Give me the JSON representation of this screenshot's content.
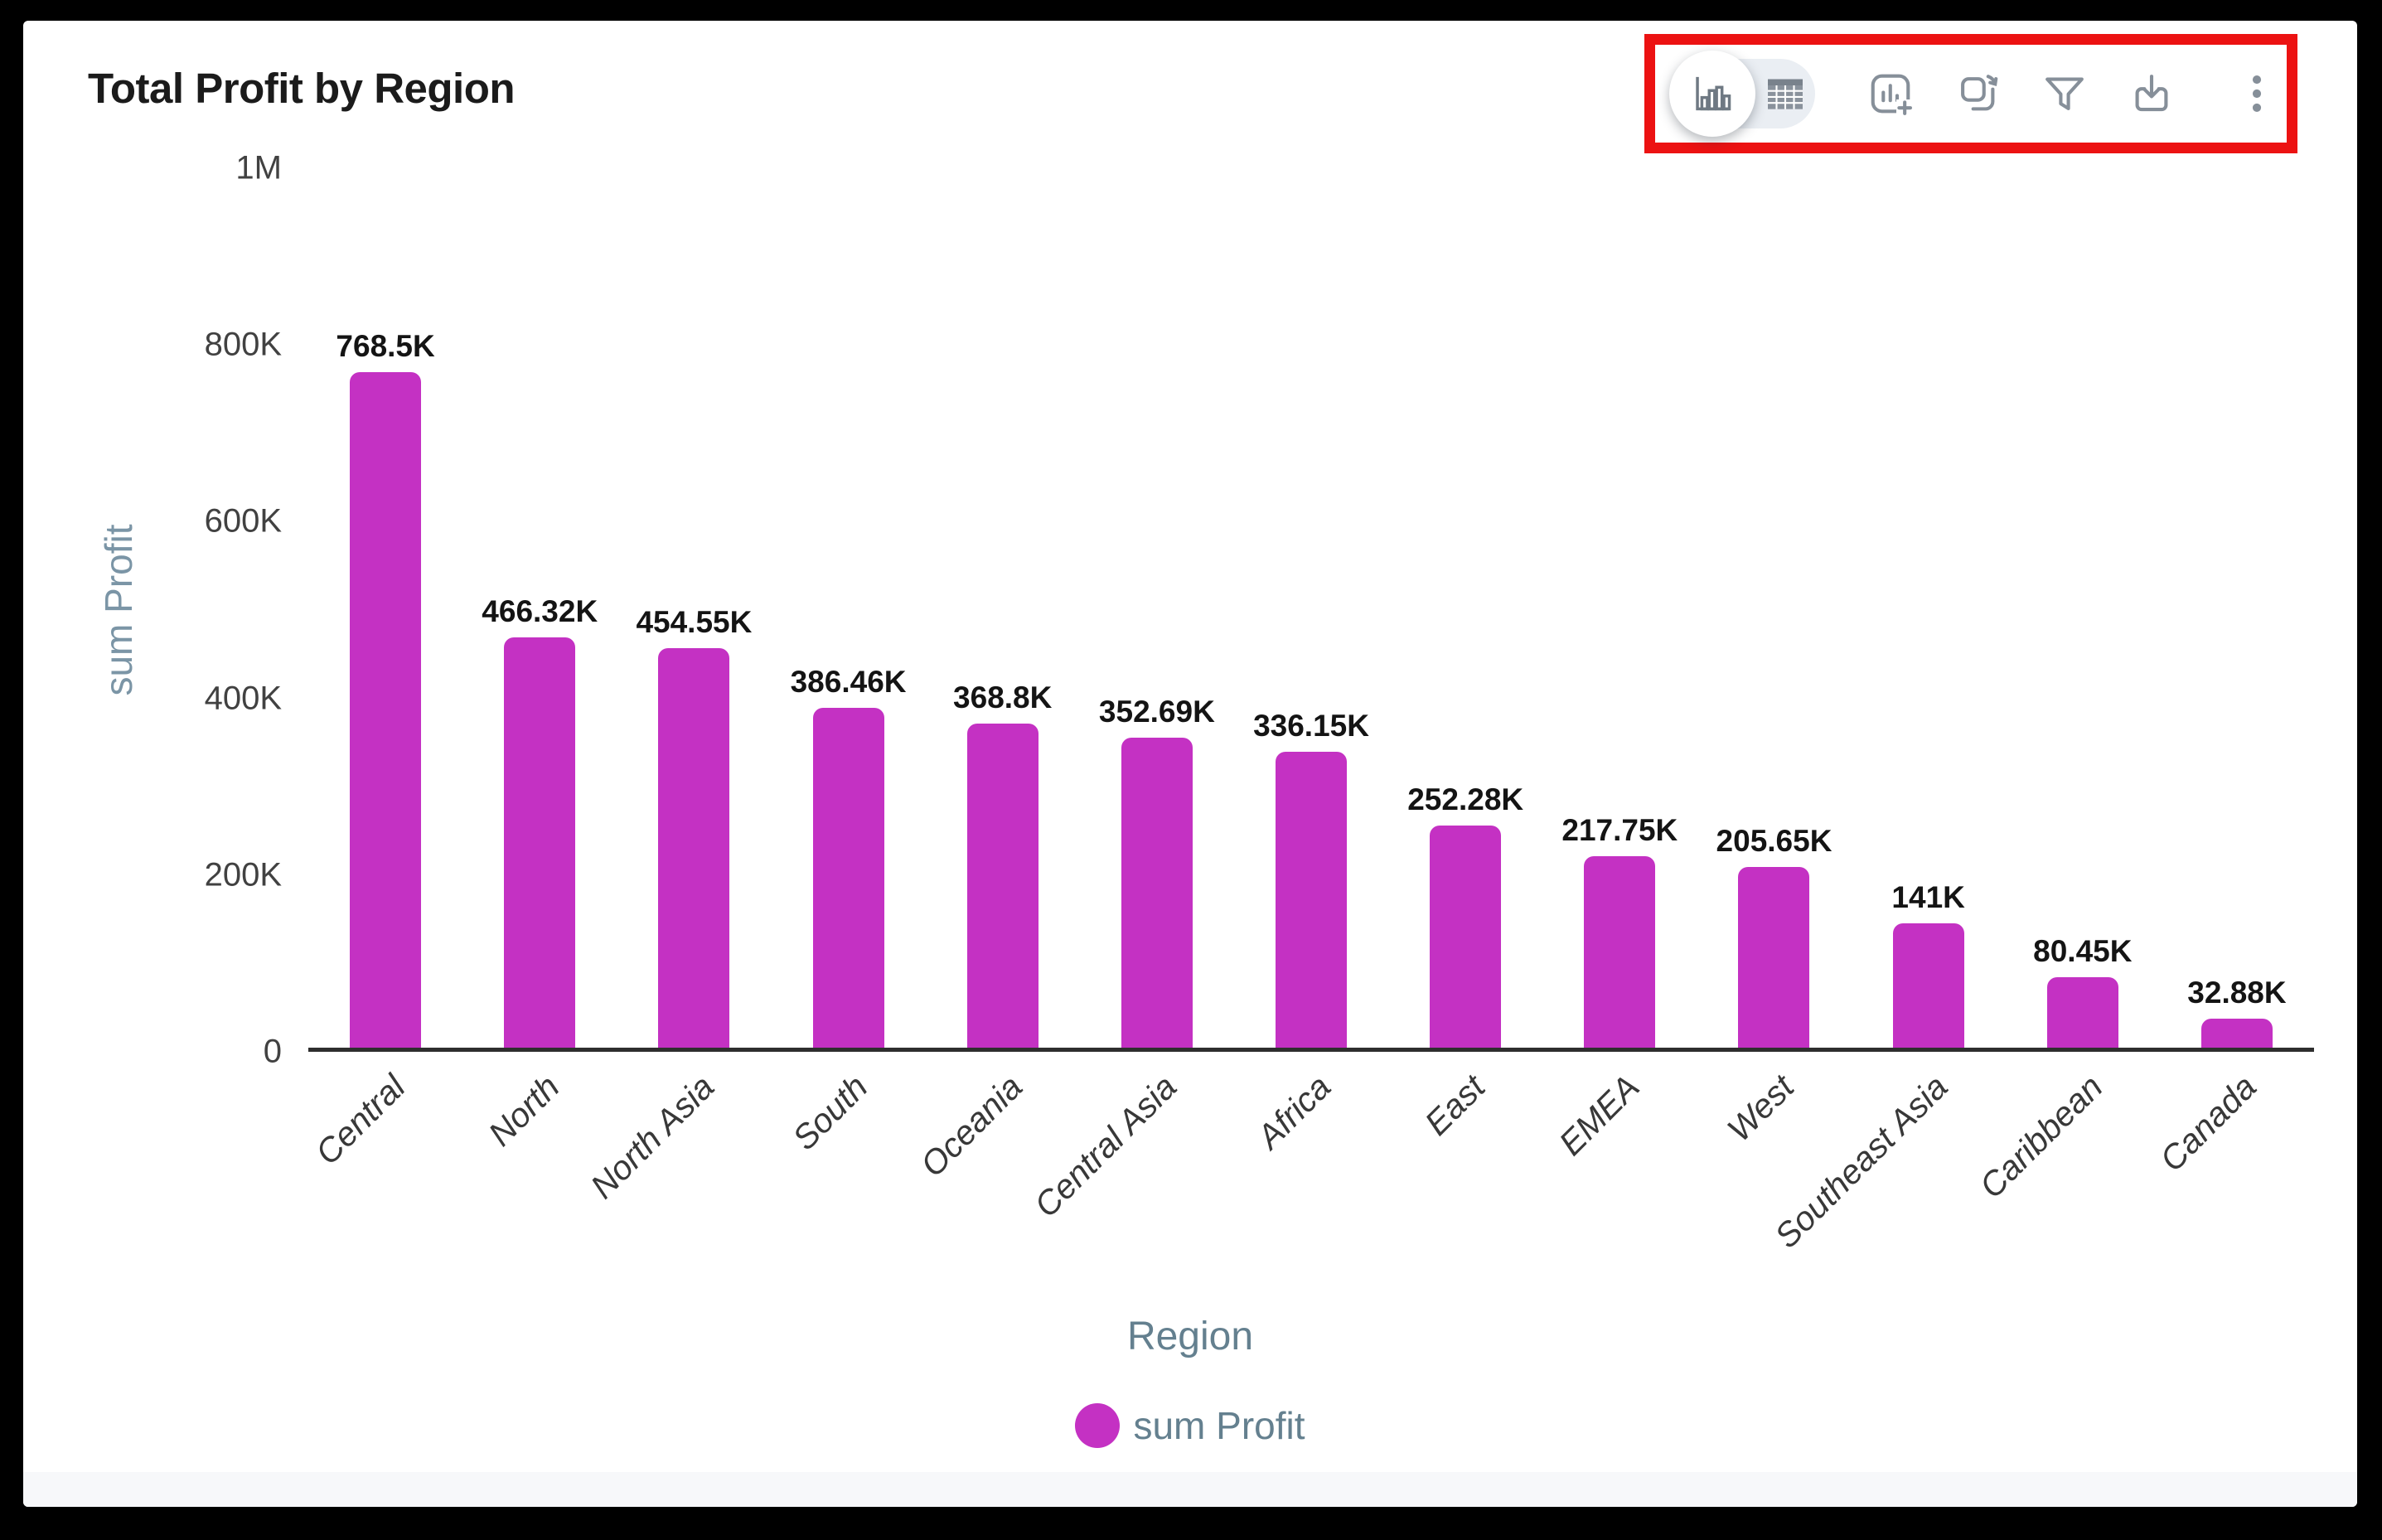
{
  "header": {
    "title": "Total Profit by Region"
  },
  "toolbar": {
    "highlight_color": "#ec1212",
    "view_toggle": {
      "selected": "chart-view",
      "options": [
        "chart-view",
        "table-view"
      ]
    },
    "icons": [
      "add-chart",
      "duplicate",
      "filter",
      "download",
      "more-options"
    ]
  },
  "chart_data": {
    "type": "bar",
    "title": "Total Profit by Region",
    "xlabel": "Region",
    "ylabel": "sum Profit",
    "categories": [
      "Central",
      "North",
      "North Asia",
      "South",
      "Oceania",
      "Central Asia",
      "Africa",
      "East",
      "EMEA",
      "West",
      "Southeast Asia",
      "Caribbean",
      "Canada"
    ],
    "values": [
      768500,
      466320,
      454550,
      386460,
      368800,
      352690,
      336150,
      252280,
      217750,
      205650,
      141000,
      80450,
      32880
    ],
    "value_labels": [
      "768.5K",
      "466.32K",
      "454.55K",
      "386.46K",
      "368.8K",
      "352.69K",
      "336.15K",
      "252.28K",
      "217.75K",
      "205.65K",
      "141K",
      "80.45K",
      "32.88K"
    ],
    "y_ticks": [
      "1M",
      "800K",
      "600K",
      "400K",
      "200K",
      "0"
    ],
    "ylim": [
      0,
      1000000
    ],
    "grid": false,
    "bar_color": "#c431c3",
    "legend": {
      "label": "sum Profit",
      "position": "bottom"
    }
  }
}
